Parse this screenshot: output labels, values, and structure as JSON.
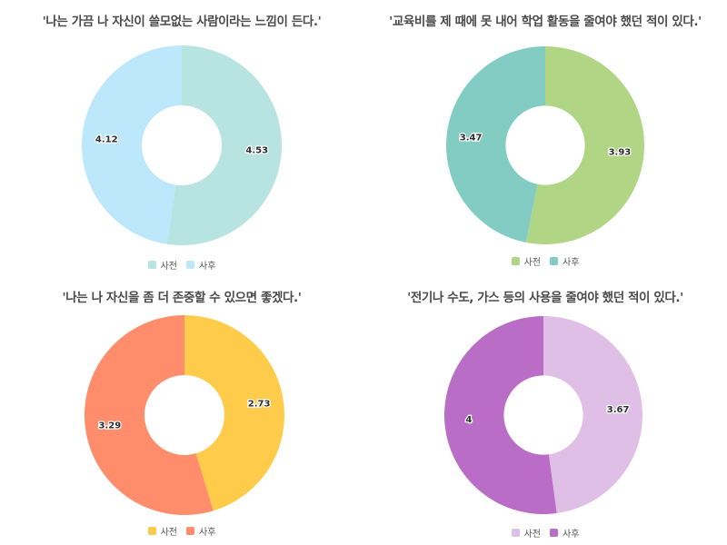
{
  "chart_data": [
    {
      "type": "pie",
      "title": "'나는 가끔 나 자신이 쓸모없는 사람이라는 느낌이 든다.'",
      "categories": [
        "사전",
        "사후"
      ],
      "values": [
        4.53,
        4.12
      ],
      "value_labels": [
        "4.53",
        "4.12"
      ],
      "colors": [
        "#b7e4e0",
        "#bde7fb"
      ],
      "donut": true,
      "legend": "bottom"
    },
    {
      "type": "pie",
      "title": "'교육비를 제 때에 못 내어 학업 활동을 줄여야 했던 적이 있다.'",
      "categories": [
        "사전",
        "사후"
      ],
      "values": [
        3.93,
        3.47
      ],
      "value_labels": [
        "3.93",
        "3.47"
      ],
      "colors": [
        "#b0d585",
        "#82ccc4"
      ],
      "donut": true,
      "legend": "bottom"
    },
    {
      "type": "pie",
      "title": "'나는 나 자신을 좀 더 존중할 수 있으면 좋겠다.'",
      "categories": [
        "사전",
        "사후"
      ],
      "values": [
        2.73,
        3.29
      ],
      "value_labels": [
        "2.73",
        "3.29"
      ],
      "colors": [
        "#ffcb4a",
        "#ff8c6b"
      ],
      "donut": true,
      "legend": "bottom"
    },
    {
      "type": "pie",
      "title": "'전기나 수도, 가스 등의 사용을 줄여야 했던 적이 있다.'",
      "categories": [
        "사전",
        "사후"
      ],
      "values": [
        3.67,
        4
      ],
      "value_labels": [
        "3.67",
        "4"
      ],
      "colors": [
        "#e0bfe6",
        "#b96dc7"
      ],
      "donut": true,
      "legend": "bottom"
    }
  ]
}
